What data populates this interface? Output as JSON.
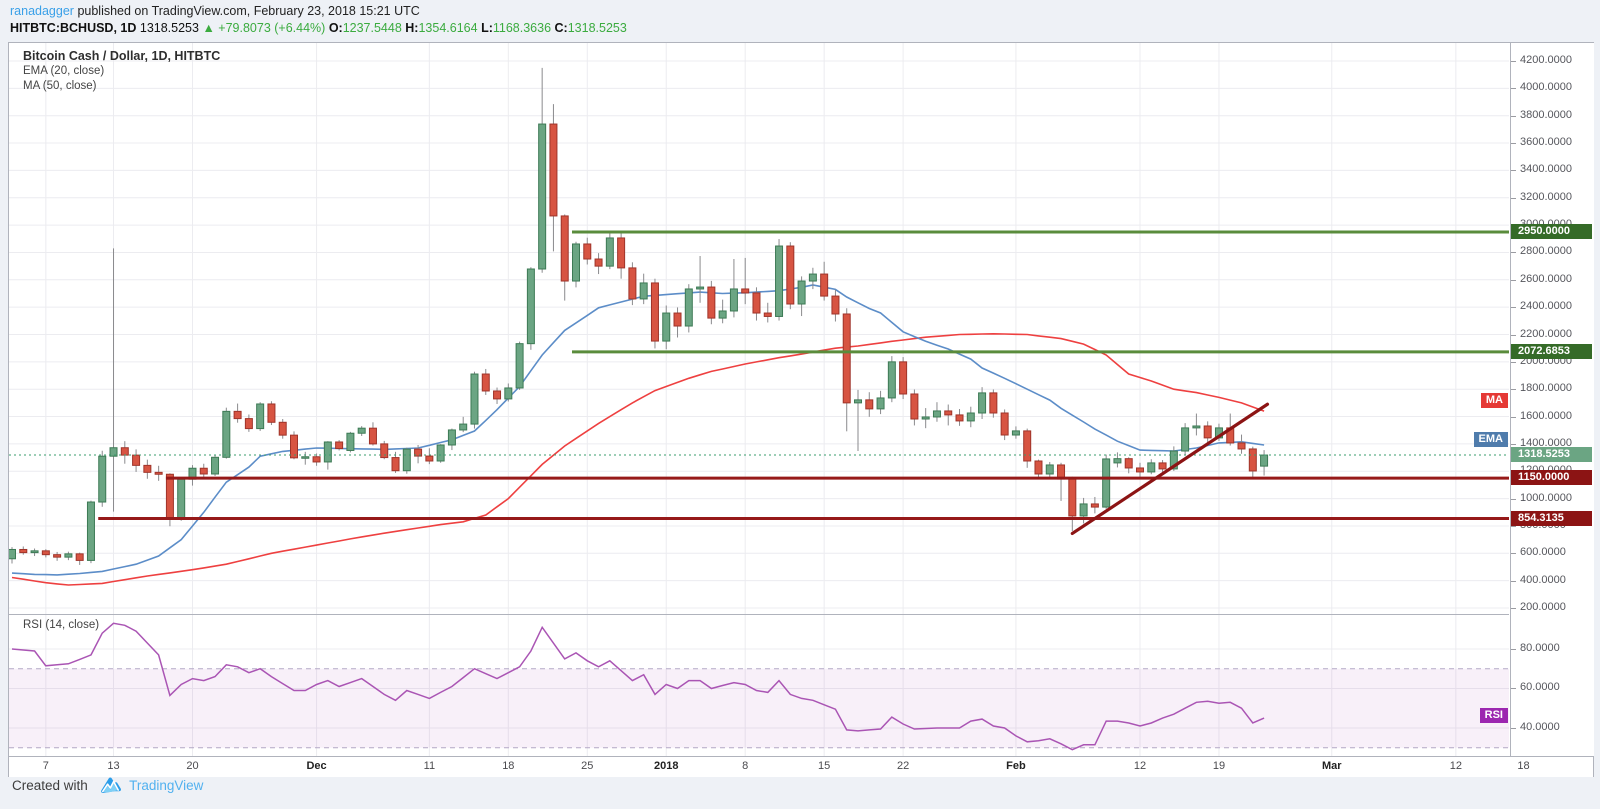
{
  "header": {
    "author": "ranadagger",
    "published": "published on TradingView.com, February 23, 2018 15:21 UTC",
    "symbol": "HITBTC:BCHUSD, 1D",
    "last_price": "1318.5253",
    "change": "▲ +79.8073 (+6.44%)",
    "o_label": "O:",
    "o_value": "1237.5448",
    "h_label": "H:",
    "h_value": "1354.6164",
    "l_label": "L:",
    "l_value": "1168.3636",
    "c_label": "C:",
    "c_value": "1318.5253"
  },
  "legend": {
    "title": "Bitcoin Cash / Dollar, 1D, HITBTC",
    "ema": "EMA (20, close)",
    "ma": "MA (50, close)"
  },
  "rsi_label": "RSI (14, close)",
  "footer": {
    "created_with": "Created with",
    "brand": "TradingView"
  },
  "colors": {
    "up_fill": "#6ba583",
    "up_border": "#3d7a55",
    "down_fill": "#d75442",
    "down_border": "#9f342a",
    "wick": "#8a8a8d",
    "ema_line": "#5c8dc8",
    "ma_line": "#ee4040",
    "level_green": "#5a8c3c",
    "level_green_badge": "#356b28",
    "level_red": "#961919",
    "level_red_badge": "#8c1414",
    "trend": "#8c1414",
    "last_line": "#3a9d6e",
    "last_badge": "#6ba583",
    "ma_badge": "#e53935",
    "ema_badge": "#4f7cac",
    "rsi_line": "#aa55b4",
    "rsi_badge": "#9c27b0",
    "rsi_band_fill": "rgba(156,39,176,0.07)",
    "rsi_band_edge": "#b3a8c6",
    "grid": "#ececf0"
  },
  "chart_data": {
    "type": "candlestick",
    "symbol": "BCHUSD",
    "exchange": "HITBTC",
    "interval": "1D",
    "start_date": "2017-11-04",
    "title": "Bitcoin Cash / Dollar, 1D, HITBTC",
    "price_axis": {
      "min": 200,
      "max": 4200,
      "step": 200,
      "decimals": 4
    },
    "rsi_axis": {
      "ticks": [
        80,
        60,
        40
      ],
      "band": [
        30,
        70
      ]
    },
    "candles": [
      [
        560,
        645,
        525,
        628
      ],
      [
        628,
        650,
        590,
        605
      ],
      [
        605,
        635,
        580,
        618
      ],
      [
        618,
        630,
        570,
        590
      ],
      [
        590,
        610,
        545,
        572
      ],
      [
        572,
        612,
        550,
        596
      ],
      [
        596,
        605,
        515,
        548
      ],
      [
        548,
        985,
        528,
        975
      ],
      [
        975,
        1350,
        940,
        1310
      ],
      [
        1310,
        2830,
        905,
        1372
      ],
      [
        1372,
        1420,
        1255,
        1318
      ],
      [
        1318,
        1360,
        1195,
        1243
      ],
      [
        1243,
        1285,
        1145,
        1192
      ],
      [
        1192,
        1240,
        1130,
        1178
      ],
      [
        1178,
        1185,
        798,
        858
      ],
      [
        858,
        1150,
        838,
        1142
      ],
      [
        1142,
        1245,
        1095,
        1222
      ],
      [
        1222,
        1255,
        1148,
        1180
      ],
      [
        1180,
        1315,
        1165,
        1302
      ],
      [
        1302,
        1665,
        1292,
        1638
      ],
      [
        1638,
        1695,
        1555,
        1585
      ],
      [
        1585,
        1615,
        1488,
        1512
      ],
      [
        1512,
        1705,
        1495,
        1692
      ],
      [
        1692,
        1712,
        1538,
        1558
      ],
      [
        1558,
        1582,
        1438,
        1464
      ],
      [
        1464,
        1492,
        1288,
        1298
      ],
      [
        1298,
        1342,
        1248,
        1306
      ],
      [
        1306,
        1330,
        1240,
        1268
      ],
      [
        1268,
        1420,
        1212,
        1414
      ],
      [
        1414,
        1428,
        1352,
        1366
      ],
      [
        1352,
        1488,
        1338,
        1478
      ],
      [
        1478,
        1530,
        1458,
        1515
      ],
      [
        1515,
        1558,
        1388,
        1400
      ],
      [
        1400,
        1422,
        1288,
        1300
      ],
      [
        1300,
        1342,
        1188,
        1204
      ],
      [
        1204,
        1372,
        1182,
        1362
      ],
      [
        1362,
        1392,
        1258,
        1311
      ],
      [
        1311,
        1368,
        1252,
        1275
      ],
      [
        1275,
        1398,
        1262,
        1392
      ],
      [
        1392,
        1512,
        1355,
        1502
      ],
      [
        1502,
        1598,
        1486,
        1545
      ],
      [
        1545,
        1928,
        1512,
        1911
      ],
      [
        1911,
        1948,
        1758,
        1787
      ],
      [
        1787,
        1812,
        1692,
        1729
      ],
      [
        1729,
        1842,
        1710,
        1809
      ],
      [
        1809,
        2148,
        1795,
        2133
      ],
      [
        2133,
        2692,
        2088,
        2679
      ],
      [
        2679,
        4150,
        2652,
        3739
      ],
      [
        3739,
        3885,
        2808,
        3067
      ],
      [
        3067,
        3078,
        2448,
        2591
      ],
      [
        2591,
        2878,
        2545,
        2862
      ],
      [
        2862,
        2908,
        2712,
        2752
      ],
      [
        2752,
        2795,
        2642,
        2700
      ],
      [
        2700,
        2952,
        2678,
        2906
      ],
      [
        2906,
        2942,
        2608,
        2687
      ],
      [
        2687,
        2728,
        2415,
        2460
      ],
      [
        2460,
        2645,
        2422,
        2577
      ],
      [
        2577,
        2608,
        2098,
        2152
      ],
      [
        2152,
        2412,
        2092,
        2357
      ],
      [
        2357,
        2398,
        2178,
        2262
      ],
      [
        2262,
        2568,
        2215,
        2533
      ],
      [
        2533,
        2774,
        2432,
        2547
      ],
      [
        2547,
        2592,
        2275,
        2320
      ],
      [
        2320,
        2455,
        2282,
        2372
      ],
      [
        2372,
        2752,
        2325,
        2533
      ],
      [
        2533,
        2760,
        2422,
        2504
      ],
      [
        2504,
        2545,
        2302,
        2357
      ],
      [
        2357,
        2432,
        2288,
        2332
      ],
      [
        2332,
        2898,
        2302,
        2847
      ],
      [
        2847,
        2875,
        2385,
        2423
      ],
      [
        2423,
        2625,
        2335,
        2591
      ],
      [
        2591,
        2688,
        2532,
        2642
      ],
      [
        2642,
        2732,
        2448,
        2481
      ],
      [
        2481,
        2528,
        2295,
        2350
      ],
      [
        2350,
        2392,
        1492,
        1700
      ],
      [
        1700,
        1795,
        1348,
        1722
      ],
      [
        1722,
        1778,
        1598,
        1656
      ],
      [
        1656,
        1788,
        1618,
        1736
      ],
      [
        1736,
        2042,
        1705,
        2000
      ],
      [
        2000,
        2035,
        1728,
        1765
      ],
      [
        1765,
        1798,
        1535,
        1582
      ],
      [
        1582,
        1662,
        1515,
        1597
      ],
      [
        1597,
        1705,
        1562,
        1641
      ],
      [
        1641,
        1688,
        1535,
        1612
      ],
      [
        1612,
        1655,
        1532,
        1568
      ],
      [
        1568,
        1672,
        1522,
        1626
      ],
      [
        1626,
        1815,
        1582,
        1773
      ],
      [
        1773,
        1798,
        1592,
        1626
      ],
      [
        1626,
        1652,
        1428,
        1465
      ],
      [
        1465,
        1528,
        1438,
        1495
      ],
      [
        1495,
        1512,
        1225,
        1275
      ],
      [
        1275,
        1285,
        1142,
        1180
      ],
      [
        1180,
        1268,
        1152,
        1246
      ],
      [
        1246,
        1262,
        983,
        1143
      ],
      [
        1143,
        1160,
        763,
        873
      ],
      [
        873,
        1005,
        818,
        961
      ],
      [
        961,
        1012,
        892,
        938
      ],
      [
        938,
        1322,
        925,
        1290
      ],
      [
        1261,
        1338,
        1228,
        1292
      ],
      [
        1292,
        1302,
        1185,
        1224
      ],
      [
        1224,
        1262,
        1158,
        1195
      ],
      [
        1195,
        1288,
        1178,
        1261
      ],
      [
        1261,
        1282,
        1188,
        1217
      ],
      [
        1217,
        1382,
        1202,
        1348
      ],
      [
        1348,
        1552,
        1315,
        1517
      ],
      [
        1517,
        1622,
        1462,
        1531
      ],
      [
        1531,
        1565,
        1402,
        1444
      ],
      [
        1444,
        1548,
        1422,
        1517
      ],
      [
        1517,
        1622,
        1388,
        1407
      ],
      [
        1407,
        1468,
        1328,
        1363
      ],
      [
        1363,
        1380,
        1158,
        1202
      ],
      [
        1237.5448,
        1354.6164,
        1168.3636,
        1318.5253
      ]
    ],
    "ema20_points": [
      [
        0,
        455
      ],
      [
        2,
        446
      ],
      [
        4,
        442
      ],
      [
        6,
        452
      ],
      [
        8,
        468
      ],
      [
        11,
        520
      ],
      [
        13,
        580
      ],
      [
        15,
        700
      ],
      [
        17,
        900
      ],
      [
        19,
        1120
      ],
      [
        21,
        1230
      ],
      [
        22,
        1310
      ],
      [
        24,
        1345
      ],
      [
        27,
        1370
      ],
      [
        30,
        1365
      ],
      [
        33,
        1360
      ],
      [
        36,
        1370
      ],
      [
        39,
        1430
      ],
      [
        41,
        1494
      ],
      [
        43,
        1650
      ],
      [
        45,
        1820
      ],
      [
        47,
        2050
      ],
      [
        49,
        2230
      ],
      [
        52,
        2395
      ],
      [
        56,
        2480
      ],
      [
        61,
        2510
      ],
      [
        63,
        2500
      ],
      [
        65,
        2505
      ],
      [
        68,
        2520
      ],
      [
        70,
        2545
      ],
      [
        71,
        2562
      ],
      [
        73,
        2530
      ],
      [
        74,
        2474
      ],
      [
        76,
        2390
      ],
      [
        77,
        2357
      ],
      [
        79,
        2220
      ],
      [
        81,
        2150
      ],
      [
        83,
        2094
      ],
      [
        85,
        2020
      ],
      [
        86,
        1955
      ],
      [
        88,
        1880
      ],
      [
        90,
        1800
      ],
      [
        92,
        1720
      ],
      [
        93,
        1660
      ],
      [
        95,
        1560
      ],
      [
        96,
        1508
      ],
      [
        98,
        1420
      ],
      [
        100,
        1355
      ],
      [
        103,
        1348
      ],
      [
        105,
        1370
      ],
      [
        107,
        1407
      ],
      [
        109,
        1415
      ],
      [
        111,
        1392
      ]
    ],
    "ma50_points": [
      [
        0,
        423
      ],
      [
        3,
        385
      ],
      [
        5,
        368
      ],
      [
        8,
        380
      ],
      [
        12,
        434
      ],
      [
        16,
        480
      ],
      [
        19,
        520
      ],
      [
        23,
        600
      ],
      [
        27,
        660
      ],
      [
        31,
        720
      ],
      [
        34,
        760
      ],
      [
        38,
        810
      ],
      [
        40,
        830
      ],
      [
        42,
        880
      ],
      [
        44,
        1000
      ],
      [
        47,
        1250
      ],
      [
        49,
        1385
      ],
      [
        52,
        1550
      ],
      [
        55,
        1700
      ],
      [
        57,
        1790
      ],
      [
        60,
        1880
      ],
      [
        62,
        1930
      ],
      [
        65,
        1984
      ],
      [
        68,
        2030
      ],
      [
        70,
        2057
      ],
      [
        73,
        2100
      ],
      [
        75,
        2116
      ],
      [
        78,
        2150
      ],
      [
        81,
        2180
      ],
      [
        84,
        2200
      ],
      [
        87,
        2205
      ],
      [
        90,
        2200
      ],
      [
        93,
        2170
      ],
      [
        95,
        2130
      ],
      [
        97,
        2050
      ],
      [
        99,
        1911
      ],
      [
        101,
        1860
      ],
      [
        103,
        1800
      ],
      [
        105,
        1775
      ],
      [
        107,
        1740
      ],
      [
        109,
        1700
      ],
      [
        111,
        1640
      ]
    ],
    "rsi_points": [
      [
        0,
        80
      ],
      [
        2,
        79
      ],
      [
        3,
        71.5
      ],
      [
        5,
        72.5
      ],
      [
        7,
        77
      ],
      [
        8,
        88
      ],
      [
        9,
        93
      ],
      [
        10,
        92
      ],
      [
        11,
        89
      ],
      [
        12,
        83
      ],
      [
        13,
        77
      ],
      [
        14,
        56.5
      ],
      [
        15,
        62
      ],
      [
        16,
        65
      ],
      [
        17,
        64
      ],
      [
        18,
        66
      ],
      [
        19,
        72
      ],
      [
        20,
        71
      ],
      [
        21,
        68
      ],
      [
        22,
        70
      ],
      [
        23,
        66
      ],
      [
        25,
        59
      ],
      [
        26,
        59
      ],
      [
        27,
        62
      ],
      [
        28,
        64
      ],
      [
        29,
        61
      ],
      [
        31,
        65
      ],
      [
        33,
        57
      ],
      [
        34,
        54
      ],
      [
        35,
        59
      ],
      [
        37,
        55
      ],
      [
        39,
        61
      ],
      [
        41,
        70
      ],
      [
        43,
        65
      ],
      [
        45,
        71
      ],
      [
        46,
        79
      ],
      [
        47,
        91
      ],
      [
        48,
        83
      ],
      [
        49,
        75
      ],
      [
        50,
        78
      ],
      [
        51,
        74
      ],
      [
        52,
        71
      ],
      [
        53,
        74
      ],
      [
        54,
        69
      ],
      [
        55,
        64
      ],
      [
        56,
        67
      ],
      [
        57,
        57
      ],
      [
        58,
        62
      ],
      [
        59,
        60
      ],
      [
        60,
        64
      ],
      [
        61,
        64
      ],
      [
        62,
        60
      ],
      [
        64,
        63
      ],
      [
        65,
        62
      ],
      [
        66,
        59
      ],
      [
        67,
        58
      ],
      [
        68,
        64
      ],
      [
        69,
        57
      ],
      [
        70,
        55
      ],
      [
        71,
        54
      ],
      [
        73,
        49.5
      ],
      [
        74,
        39
      ],
      [
        75,
        38.5
      ],
      [
        77,
        39.5
      ],
      [
        78,
        45.5
      ],
      [
        79,
        42
      ],
      [
        80,
        39.5
      ],
      [
        82,
        40
      ],
      [
        83,
        40
      ],
      [
        84,
        40
      ],
      [
        85,
        43.5
      ],
      [
        86,
        44.5
      ],
      [
        87,
        41
      ],
      [
        88,
        40
      ],
      [
        89,
        36
      ],
      [
        90,
        33
      ],
      [
        91,
        33.5
      ],
      [
        92,
        34.5
      ],
      [
        93,
        32
      ],
      [
        94,
        29
      ],
      [
        95,
        31.5
      ],
      [
        96,
        31.5
      ],
      [
        97,
        43.5
      ],
      [
        98,
        43.5
      ],
      [
        99,
        42.5
      ],
      [
        100,
        41
      ],
      [
        101,
        42.5
      ],
      [
        102,
        45
      ],
      [
        103,
        47
      ],
      [
        104,
        50
      ],
      [
        105,
        53
      ],
      [
        106,
        53.5
      ],
      [
        107,
        52.5
      ],
      [
        108,
        53
      ],
      [
        109,
        50
      ],
      [
        110,
        42.5
      ],
      [
        111,
        45
      ]
    ],
    "levels": [
      {
        "value": 2950,
        "label": "2950.0000",
        "color": "green",
        "from_index": 50
      },
      {
        "value": 2072.6853,
        "label": "2072.6853",
        "color": "green",
        "from_index": 50
      },
      {
        "value": 1150,
        "label": "1150.0000",
        "color": "red",
        "from_index": 14
      },
      {
        "value": 854.3135,
        "label": "854.3135",
        "color": "red",
        "from_index": 8
      }
    ],
    "last_price": {
      "value": 1318.5253,
      "label": "1318.5253"
    },
    "trendline": {
      "from_index": 94,
      "from_value": 745,
      "to_index": 111.3,
      "to_value": 1690
    },
    "indicator_badges": [
      {
        "text": "MA",
        "value": 1714,
        "pane": "main",
        "kind": "ma"
      },
      {
        "text": "EMA",
        "value": 1430,
        "pane": "main",
        "kind": "ema"
      },
      {
        "text": "RSI",
        "value": 46,
        "pane": "rsi",
        "kind": "rsi"
      }
    ],
    "time_ticks": [
      {
        "label": "7",
        "i": 3
      },
      {
        "label": "13",
        "i": 9
      },
      {
        "label": "20",
        "i": 16
      },
      {
        "label": "Dec",
        "i": 27,
        "strong": true
      },
      {
        "label": "11",
        "i": 37
      },
      {
        "label": "18",
        "i": 44
      },
      {
        "label": "25",
        "i": 51
      },
      {
        "label": "2018",
        "i": 58,
        "strong": true
      },
      {
        "label": "8",
        "i": 65
      },
      {
        "label": "15",
        "i": 72
      },
      {
        "label": "22",
        "i": 79
      },
      {
        "label": "Feb",
        "i": 89,
        "strong": true
      },
      {
        "label": "12",
        "i": 100
      },
      {
        "label": "19",
        "i": 107
      },
      {
        "label": "Mar",
        "i": 117,
        "strong": true
      },
      {
        "label": "12",
        "i": 128
      },
      {
        "label": "18",
        "i": 134
      }
    ]
  }
}
